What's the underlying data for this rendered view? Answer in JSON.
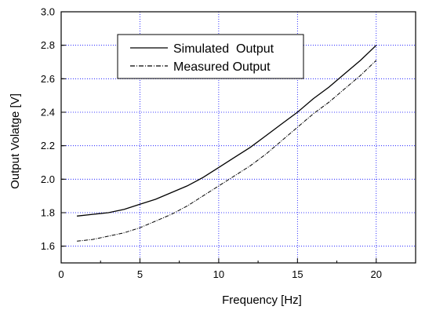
{
  "chart_data": {
    "type": "line",
    "xlabel": "Frequency [Hz]",
    "ylabel": "Output Volatge [V]",
    "xlim": [
      0,
      22.5
    ],
    "ylim": [
      1.5,
      3.0
    ],
    "x_ticks": [
      0,
      5,
      10,
      15,
      20
    ],
    "y_ticks": [
      1.6,
      1.8,
      2.0,
      2.2,
      2.4,
      2.6,
      2.8,
      3.0
    ],
    "x_tick_labels": [
      "0",
      "5",
      "10",
      "15",
      "20"
    ],
    "y_tick_labels": [
      "1.6",
      "1.8",
      "2.0",
      "2.2",
      "2.4",
      "2.6",
      "2.8",
      "3.0"
    ],
    "grid": true,
    "grid_color": "#0000ff",
    "legend_position": "top-left",
    "series": [
      {
        "name": "Simulated  Output",
        "style": "solid",
        "color": "#000000",
        "x": [
          1,
          2,
          3,
          4,
          5,
          6,
          7,
          8,
          9,
          10,
          11,
          12,
          13,
          14,
          15,
          16,
          17,
          18,
          19,
          20
        ],
        "y": [
          1.78,
          1.79,
          1.8,
          1.82,
          1.85,
          1.88,
          1.92,
          1.96,
          2.01,
          2.07,
          2.13,
          2.19,
          2.26,
          2.33,
          2.4,
          2.48,
          2.55,
          2.63,
          2.71,
          2.8
        ]
      },
      {
        "name": "Measured Output",
        "style": "dash-dot",
        "color": "#000000",
        "x": [
          1,
          2,
          3,
          4,
          5,
          6,
          7,
          8,
          9,
          10,
          11,
          12,
          13,
          14,
          15,
          16,
          17,
          18,
          19,
          20
        ],
        "y": [
          1.63,
          1.64,
          1.66,
          1.68,
          1.71,
          1.75,
          1.79,
          1.84,
          1.9,
          1.96,
          2.02,
          2.08,
          2.15,
          2.23,
          2.31,
          2.39,
          2.46,
          2.54,
          2.62,
          2.71
        ]
      }
    ]
  }
}
